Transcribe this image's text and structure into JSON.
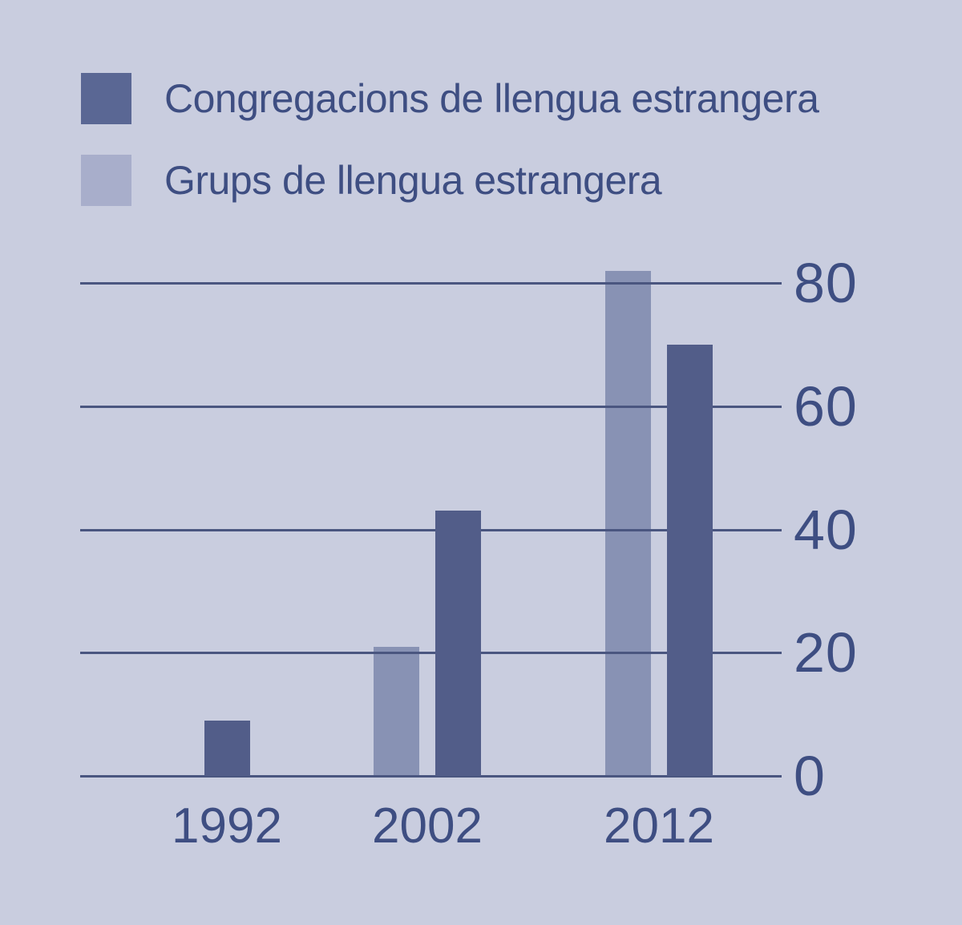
{
  "page": {
    "background_color": "#C9CDDF",
    "text_color": "#3E4E82",
    "grid_color": "#4A5680"
  },
  "legend": {
    "position": "top-left",
    "items": [
      {
        "series_index": 1,
        "swatch_color": "#5A6794"
      },
      {
        "series_index": 0,
        "swatch_color": "#A8AECB"
      }
    ]
  },
  "chart_data": {
    "type": "bar",
    "categories": [
      "1992",
      "2002",
      "2012"
    ],
    "series": [
      {
        "name": "Grups de llengua estrangera",
        "color": "#8892B4",
        "values": [
          null,
          21,
          82
        ]
      },
      {
        "name": "Congregacions de llengua estrangera",
        "color": "#525D89",
        "values": [
          9,
          43,
          70
        ]
      }
    ],
    "title": "",
    "xlabel": "",
    "ylabel": "",
    "yticks": [
      0,
      20,
      40,
      60,
      80
    ],
    "ylim": [
      0,
      87
    ],
    "grid": true,
    "legend_position": "top-left",
    "notes": "1992 has no 'Grups' bar; light bars drawn behind gridlines, dark bars in front"
  }
}
